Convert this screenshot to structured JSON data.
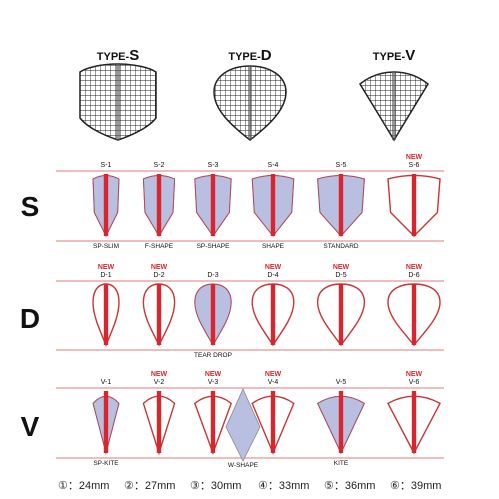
{
  "colors": {
    "accent_red": "#d8262f",
    "fill_blue": "#b9bfe0",
    "outline": "#c33",
    "grid_line": "#222222",
    "row_line": "#e07a7a"
  },
  "types": [
    {
      "prefix": "TYPE-",
      "letter": "S"
    },
    {
      "prefix": "TYPE-",
      "letter": "D"
    },
    {
      "prefix": "TYPE-",
      "letter": "V"
    }
  ],
  "rows": [
    {
      "letter": "S",
      "items": [
        {
          "code": "S-1",
          "name": "SP-SLIM",
          "new": "",
          "shape": "S",
          "size": 1,
          "filled": true
        },
        {
          "code": "S-2",
          "name": "F-SHAPE",
          "new": "",
          "shape": "S",
          "size": 2,
          "filled": true
        },
        {
          "code": "S-3",
          "name": "SP-SHAPE",
          "new": "",
          "shape": "S",
          "size": 3,
          "filled": true
        },
        {
          "code": "S-4",
          "name": "SHAPE",
          "new": "",
          "shape": "S",
          "size": 4,
          "filled": true
        },
        {
          "code": "S-5",
          "name": "STANDARD",
          "new": "",
          "shape": "S",
          "size": 5,
          "filled": true
        },
        {
          "code": "S-6",
          "name": "",
          "new": "NEW",
          "shape": "S",
          "size": 6,
          "filled": false
        }
      ]
    },
    {
      "letter": "D",
      "items": [
        {
          "code": "D-1",
          "name": "",
          "new": "NEW",
          "shape": "D",
          "size": 1,
          "filled": false
        },
        {
          "code": "D-2",
          "name": "",
          "new": "NEW",
          "shape": "D",
          "size": 2,
          "filled": false
        },
        {
          "code": "D-3",
          "name": "TEAR DROP",
          "new": "",
          "shape": "D",
          "size": 3,
          "filled": true
        },
        {
          "code": "D-4",
          "name": "",
          "new": "NEW",
          "shape": "D",
          "size": 4,
          "filled": false
        },
        {
          "code": "D-5",
          "name": "",
          "new": "NEW",
          "shape": "D",
          "size": 5,
          "filled": false
        },
        {
          "code": "D-6",
          "name": "",
          "new": "NEW",
          "shape": "D",
          "size": 6,
          "filled": false
        }
      ]
    },
    {
      "letter": "V",
      "items": [
        {
          "code": "V-1",
          "name": "SP-KITE",
          "new": "",
          "shape": "V",
          "size": 1,
          "filled": true
        },
        {
          "code": "V-2",
          "name": "",
          "new": "NEW",
          "shape": "V",
          "size": 2,
          "filled": false
        },
        {
          "code": "V-3",
          "name": "W-SHAPE",
          "new": "NEW",
          "shape": "W",
          "size": 3,
          "filled": false
        },
        {
          "code": "V-4",
          "name": "",
          "new": "NEW",
          "shape": "V",
          "size": 4,
          "filled": false
        },
        {
          "code": "V-5",
          "name": "KITE",
          "new": "",
          "shape": "V",
          "size": 5,
          "filled": true
        },
        {
          "code": "V-6",
          "name": "",
          "new": "NEW",
          "shape": "V",
          "size": 6,
          "filled": false
        }
      ]
    }
  ],
  "legend": [
    {
      "text": "①：24mm"
    },
    {
      "text": "②：27mm"
    },
    {
      "text": "③：30mm"
    },
    {
      "text": "④：33mm"
    },
    {
      "text": "⑤：36mm"
    },
    {
      "text": "⑥：39mm"
    }
  ]
}
